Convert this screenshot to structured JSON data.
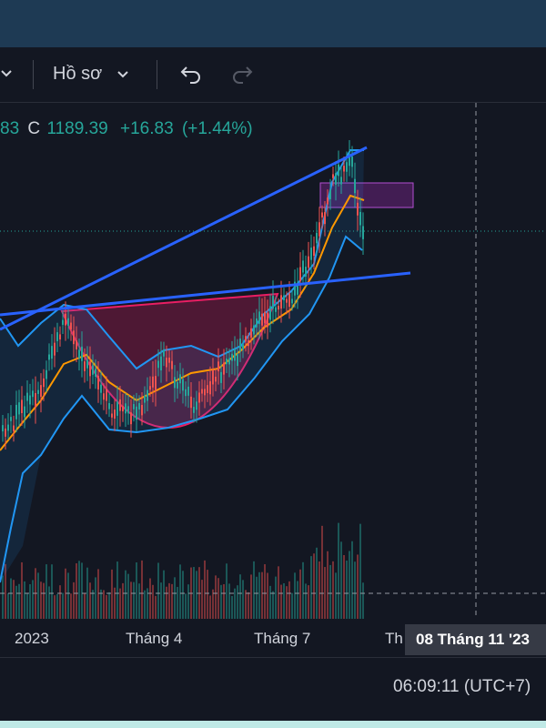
{
  "toolbar": {
    "profile_label": "Hồ sơ",
    "undo_icon": "undo-icon",
    "redo_icon": "redo-icon",
    "chevron_icon": "chevron-down-icon"
  },
  "legend": {
    "prev_fragment": "83",
    "close_key": "C",
    "close_value": "1189.39",
    "change": "+16.83",
    "change_pct": "(+1.44%)"
  },
  "colors": {
    "bull": "#26a69a",
    "bear": "#ef5350",
    "trendline": "#2962ff",
    "band": "#2196f3",
    "ma": "#ff9800",
    "cup": "#e91e63",
    "box": "#9c27b0"
  },
  "time_axis": {
    "labels": [
      "2023",
      "Tháng 4",
      "Tháng 7",
      "Th"
    ],
    "crosshair_date": "08 Tháng 11 '23"
  },
  "status": {
    "clock": "06:09:11 (UTC+7)"
  }
}
